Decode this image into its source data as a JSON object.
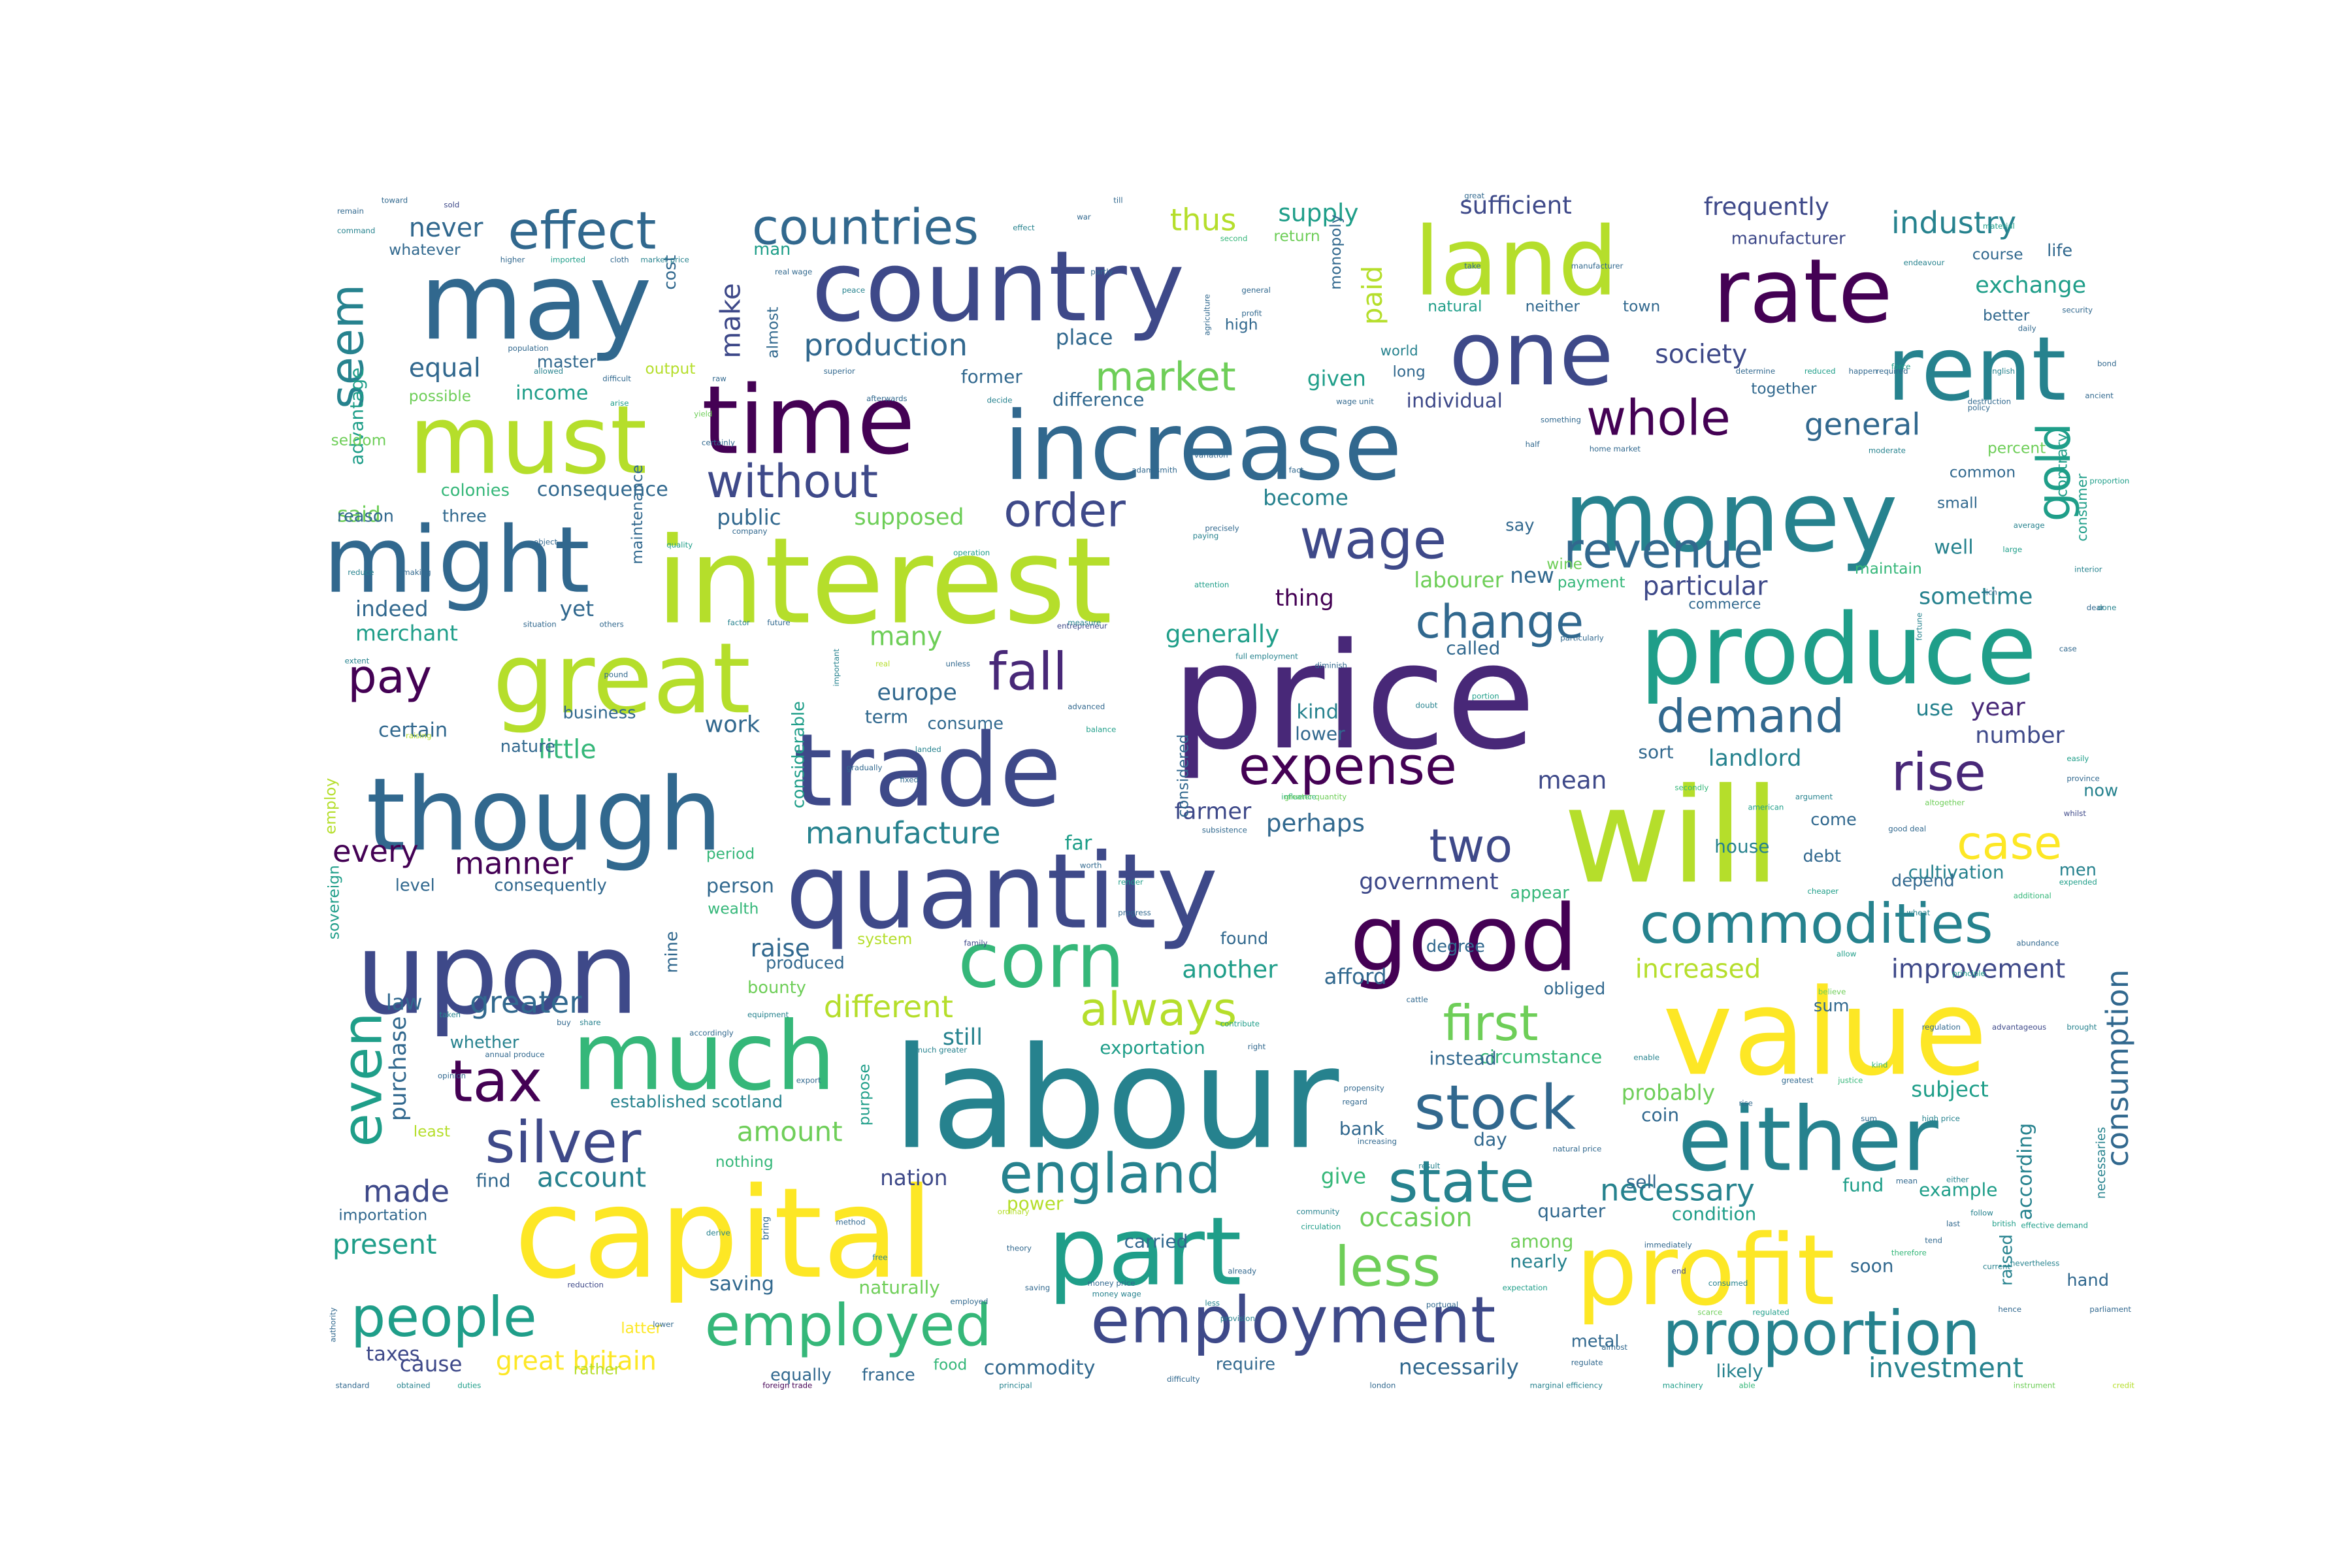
{
  "palette": [
    "#440154",
    "#482878",
    "#3e4989",
    "#31688e",
    "#26828e",
    "#1f9e89",
    "#35b779",
    "#6ece58",
    "#b5de2b",
    "#fde725"
  ],
  "words": [
    {
      "text": "price"
    },
    {
      "text": "labour"
    },
    {
      "text": "capital"
    },
    {
      "text": "value"
    },
    {
      "text": "country"
    },
    {
      "text": "interest"
    },
    {
      "text": "will"
    },
    {
      "text": "profit"
    },
    {
      "text": "quantity"
    },
    {
      "text": "trade"
    },
    {
      "text": "upon"
    },
    {
      "text": "though"
    },
    {
      "text": "land"
    },
    {
      "text": "may"
    },
    {
      "text": "money"
    },
    {
      "text": "produce"
    },
    {
      "text": "increase"
    },
    {
      "text": "part"
    },
    {
      "text": "time"
    },
    {
      "text": "must"
    },
    {
      "text": "great"
    },
    {
      "text": "might"
    },
    {
      "text": "rate"
    },
    {
      "text": "much"
    },
    {
      "text": "either"
    },
    {
      "text": "good"
    },
    {
      "text": "one"
    },
    {
      "text": "rent"
    },
    {
      "text": "corn"
    },
    {
      "text": "employment"
    },
    {
      "text": "proportion"
    },
    {
      "text": "stock"
    },
    {
      "text": "state"
    },
    {
      "text": "employed"
    },
    {
      "text": "commodities"
    },
    {
      "text": "people"
    },
    {
      "text": "silver"
    },
    {
      "text": "tax"
    },
    {
      "text": "even"
    },
    {
      "text": "england"
    },
    {
      "text": "expense"
    },
    {
      "text": "less"
    },
    {
      "text": "wage"
    },
    {
      "text": "whole"
    },
    {
      "text": "revenue"
    },
    {
      "text": "countries"
    },
    {
      "text": "effect"
    },
    {
      "text": "fall"
    },
    {
      "text": "demand"
    },
    {
      "text": "rise"
    },
    {
      "text": "case"
    },
    {
      "text": "first"
    },
    {
      "text": "always"
    },
    {
      "text": "market"
    },
    {
      "text": "without"
    },
    {
      "text": "order"
    },
    {
      "text": "change"
    },
    {
      "text": "pay"
    },
    {
      "text": "two"
    },
    {
      "text": "gold"
    },
    {
      "text": "seem"
    },
    {
      "text": "manufacture"
    },
    {
      "text": "production"
    },
    {
      "text": "industry"
    },
    {
      "text": "consumption"
    },
    {
      "text": "investment"
    },
    {
      "text": "necessary"
    },
    {
      "text": "greater"
    },
    {
      "text": "different"
    },
    {
      "text": "improvement"
    },
    {
      "text": "great britain"
    },
    {
      "text": "occasion"
    },
    {
      "text": "account"
    },
    {
      "text": "amount"
    },
    {
      "text": "made"
    },
    {
      "text": "present"
    },
    {
      "text": "increased"
    },
    {
      "text": "general"
    },
    {
      "text": "society"
    },
    {
      "text": "supply"
    },
    {
      "text": "thus"
    },
    {
      "text": "sufficient"
    },
    {
      "text": "frequently"
    },
    {
      "text": "exchange"
    },
    {
      "text": "paid"
    },
    {
      "text": "make"
    },
    {
      "text": "equal"
    },
    {
      "text": "never"
    },
    {
      "text": "income"
    },
    {
      "text": "manner"
    },
    {
      "text": "every"
    },
    {
      "text": "little"
    },
    {
      "text": "certain"
    },
    {
      "text": "indeed"
    },
    {
      "text": "merchant"
    },
    {
      "text": "public"
    },
    {
      "text": "supposed"
    },
    {
      "text": "consequence"
    },
    {
      "text": "generally"
    },
    {
      "text": "particular"
    },
    {
      "text": "labourer"
    },
    {
      "text": "sometime"
    },
    {
      "text": "landlord"
    },
    {
      "text": "year"
    },
    {
      "text": "number"
    },
    {
      "text": "mean"
    },
    {
      "text": "perhaps"
    },
    {
      "text": "farmer"
    },
    {
      "text": "government"
    },
    {
      "text": "another"
    },
    {
      "text": "raise"
    },
    {
      "text": "nation"
    },
    {
      "text": "give"
    },
    {
      "text": "commodity"
    },
    {
      "text": "necessarily"
    },
    {
      "text": "probably"
    },
    {
      "text": "subject"
    },
    {
      "text": "according"
    },
    {
      "text": "many"
    },
    {
      "text": "europe"
    },
    {
      "text": "work"
    },
    {
      "text": "person"
    },
    {
      "text": "law"
    },
    {
      "text": "purchase"
    },
    {
      "text": "still"
    },
    {
      "text": "afford"
    },
    {
      "text": "bank"
    },
    {
      "text": "sell"
    },
    {
      "text": "coin"
    },
    {
      "text": "taxes"
    },
    {
      "text": "cause"
    },
    {
      "text": "saving"
    },
    {
      "text": "naturally"
    },
    {
      "text": "given"
    },
    {
      "text": "become"
    },
    {
      "text": "thing"
    },
    {
      "text": "new"
    },
    {
      "text": "yet"
    },
    {
      "text": "said"
    },
    {
      "text": "individual"
    },
    {
      "text": "difference"
    },
    {
      "text": "place"
    },
    {
      "text": "former"
    },
    {
      "text": "called"
    },
    {
      "text": "kind"
    },
    {
      "text": "lower"
    },
    {
      "text": "well"
    },
    {
      "text": "use"
    },
    {
      "text": "sort"
    },
    {
      "text": "house"
    },
    {
      "text": "cultivation"
    },
    {
      "text": "circumstance"
    },
    {
      "text": "exportation"
    },
    {
      "text": "instead"
    },
    {
      "text": "day"
    },
    {
      "text": "quarter"
    },
    {
      "text": "condition"
    },
    {
      "text": "example"
    },
    {
      "text": "fund"
    },
    {
      "text": "nearly"
    },
    {
      "text": "among"
    },
    {
      "text": "carried"
    },
    {
      "text": "power"
    },
    {
      "text": "find"
    },
    {
      "text": "established scotland"
    },
    {
      "text": "whether"
    },
    {
      "text": "level"
    },
    {
      "text": "consequently"
    },
    {
      "text": "produced"
    },
    {
      "text": "bounty"
    },
    {
      "text": "equally"
    },
    {
      "text": "france"
    },
    {
      "text": "require"
    },
    {
      "text": "likely"
    },
    {
      "text": "metal"
    },
    {
      "text": "hand"
    },
    {
      "text": "soon"
    },
    {
      "text": "raised"
    },
    {
      "text": "now"
    },
    {
      "text": "men"
    },
    {
      "text": "debt"
    },
    {
      "text": "come"
    },
    {
      "text": "depend"
    },
    {
      "text": "sum"
    },
    {
      "text": "far"
    },
    {
      "text": "term"
    },
    {
      "text": "consume"
    },
    {
      "text": "nature"
    },
    {
      "text": "business"
    },
    {
      "text": "three"
    },
    {
      "text": "reason"
    },
    {
      "text": "colonies"
    },
    {
      "text": "master"
    },
    {
      "text": "advantage"
    },
    {
      "text": "possible"
    },
    {
      "text": "output"
    },
    {
      "text": "cost"
    },
    {
      "text": "man"
    },
    {
      "text": "almost"
    },
    {
      "text": "whatever"
    },
    {
      "text": "high"
    },
    {
      "text": "long"
    },
    {
      "text": "world"
    },
    {
      "text": "natural"
    },
    {
      "text": "neither"
    },
    {
      "text": "town"
    },
    {
      "text": "manufacturer"
    },
    {
      "text": "course"
    },
    {
      "text": "life"
    },
    {
      "text": "better"
    },
    {
      "text": "together"
    },
    {
      "text": "percent"
    },
    {
      "text": "common"
    },
    {
      "text": "small"
    },
    {
      "text": "contrary"
    },
    {
      "text": "consumer"
    },
    {
      "text": "commerce"
    },
    {
      "text": "maintain"
    },
    {
      "text": "wine"
    },
    {
      "text": "say"
    },
    {
      "text": "payment"
    },
    {
      "text": "return"
    },
    {
      "text": "monopoly"
    },
    {
      "text": "seldom"
    },
    {
      "text": "employ"
    },
    {
      "text": "sovereign"
    },
    {
      "text": "maintenance"
    },
    {
      "text": "considerable"
    },
    {
      "text": "mine"
    },
    {
      "text": "considered"
    },
    {
      "text": "entrepreneur"
    },
    {
      "text": "foreign trade"
    },
    {
      "text": "london"
    },
    {
      "text": "marginal efficiency"
    },
    {
      "text": "machinery"
    },
    {
      "text": "able"
    },
    {
      "text": "instrument"
    },
    {
      "text": "credit"
    },
    {
      "text": "parliament"
    },
    {
      "text": "current"
    },
    {
      "text": "british"
    },
    {
      "text": "last"
    },
    {
      "text": "scarce"
    },
    {
      "text": "regulated"
    },
    {
      "text": "end"
    },
    {
      "text": "least"
    },
    {
      "text": "food"
    },
    {
      "text": "principal"
    },
    {
      "text": "obliged"
    },
    {
      "text": "degree"
    },
    {
      "text": "appear"
    },
    {
      "text": "found"
    },
    {
      "text": "system"
    },
    {
      "text": "period"
    },
    {
      "text": "wealth"
    },
    {
      "text": "latter"
    },
    {
      "text": "rather"
    },
    {
      "text": "obtained"
    },
    {
      "text": "standard"
    },
    {
      "text": "duties"
    },
    {
      "text": "importation"
    },
    {
      "text": "immediately"
    },
    {
      "text": "reduction"
    },
    {
      "text": "bring"
    },
    {
      "text": "nothing"
    },
    {
      "text": "purpose"
    },
    {
      "text": "opinion"
    },
    {
      "text": "annual produce"
    },
    {
      "text": "necessaries"
    },
    {
      "text": "cheaper"
    },
    {
      "text": "justice"
    },
    {
      "text": "greatest"
    },
    {
      "text": "advantageous"
    },
    {
      "text": "regulation"
    },
    {
      "text": "brought"
    },
    {
      "text": "expended"
    },
    {
      "text": "additional"
    },
    {
      "text": "population"
    },
    {
      "text": "allowed"
    },
    {
      "text": "difficult"
    },
    {
      "text": "arise"
    },
    {
      "text": "yield"
    },
    {
      "text": "raw"
    },
    {
      "text": "peace"
    },
    {
      "text": "superior"
    },
    {
      "text": "afterwards"
    },
    {
      "text": "decide"
    },
    {
      "text": "remain"
    },
    {
      "text": "toward"
    },
    {
      "text": "sold"
    },
    {
      "text": "command"
    },
    {
      "text": "higher"
    },
    {
      "text": "imported"
    },
    {
      "text": "cloth"
    },
    {
      "text": "market price"
    },
    {
      "text": "real wage"
    },
    {
      "text": "effect"
    },
    {
      "text": "war"
    },
    {
      "text": "till"
    },
    {
      "text": "second"
    },
    {
      "text": "partly"
    },
    {
      "text": "agriculture"
    },
    {
      "text": "general"
    },
    {
      "text": "profit"
    },
    {
      "text": "great"
    },
    {
      "text": "take"
    },
    {
      "text": "manufacturer"
    },
    {
      "text": "endeavour"
    },
    {
      "text": "material"
    },
    {
      "text": "daily"
    },
    {
      "text": "security"
    },
    {
      "text": "english"
    },
    {
      "text": "bond"
    },
    {
      "text": "destruction"
    },
    {
      "text": "force"
    },
    {
      "text": "reduced"
    },
    {
      "text": "happen"
    },
    {
      "text": "required"
    },
    {
      "text": "determine"
    },
    {
      "text": "home market"
    },
    {
      "text": "something"
    },
    {
      "text": "half"
    },
    {
      "text": "wage unit"
    },
    {
      "text": "moderate"
    },
    {
      "text": "policy"
    },
    {
      "text": "rich"
    },
    {
      "text": "average"
    },
    {
      "text": "large"
    },
    {
      "text": "dear"
    },
    {
      "text": "fortune"
    },
    {
      "text": "proportion"
    },
    {
      "text": "done"
    },
    {
      "text": "case"
    },
    {
      "text": "easily"
    },
    {
      "text": "province"
    },
    {
      "text": "whilst"
    },
    {
      "text": "argument"
    },
    {
      "text": "good deal"
    },
    {
      "text": "altogether"
    },
    {
      "text": "secondly"
    },
    {
      "text": "greater quantity"
    },
    {
      "text": "full employment"
    },
    {
      "text": "unless"
    },
    {
      "text": "gradually"
    },
    {
      "text": "important"
    },
    {
      "text": "real"
    },
    {
      "text": "balance"
    },
    {
      "text": "advanced"
    },
    {
      "text": "influence"
    },
    {
      "text": "subsistence"
    },
    {
      "text": "progress"
    },
    {
      "text": "render"
    },
    {
      "text": "worth"
    },
    {
      "text": "money wage"
    },
    {
      "text": "adam smith"
    },
    {
      "text": "variation"
    },
    {
      "text": "fact"
    },
    {
      "text": "paying"
    },
    {
      "text": "attention"
    },
    {
      "text": "precisely"
    },
    {
      "text": "operation"
    },
    {
      "text": "others"
    },
    {
      "text": "situation"
    },
    {
      "text": "factor"
    },
    {
      "text": "future"
    },
    {
      "text": "measure"
    },
    {
      "text": "quality"
    },
    {
      "text": "object"
    },
    {
      "text": "making"
    },
    {
      "text": "reduce"
    },
    {
      "text": "raising"
    },
    {
      "text": "pound"
    },
    {
      "text": "extent"
    },
    {
      "text": "certainly"
    },
    {
      "text": "company"
    },
    {
      "text": "ancient"
    },
    {
      "text": "interior"
    },
    {
      "text": "american"
    },
    {
      "text": "diminish"
    },
    {
      "text": "doubt"
    },
    {
      "text": "portion"
    },
    {
      "text": "particularly"
    },
    {
      "text": "natural price"
    },
    {
      "text": "derive"
    },
    {
      "text": "effective demand"
    },
    {
      "text": "follow"
    },
    {
      "text": "cattle"
    },
    {
      "text": "contribute"
    },
    {
      "text": "propensity"
    },
    {
      "text": "taken"
    },
    {
      "text": "high price"
    },
    {
      "text": "principle"
    },
    {
      "text": "allow"
    },
    {
      "text": "abundance"
    },
    {
      "text": "community"
    },
    {
      "text": "already"
    },
    {
      "text": "theory"
    },
    {
      "text": "money price"
    },
    {
      "text": "less"
    },
    {
      "text": "provision"
    },
    {
      "text": "portugal"
    },
    {
      "text": "difficulty"
    },
    {
      "text": "almost"
    },
    {
      "text": "expectation"
    },
    {
      "text": "regulate"
    },
    {
      "text": "result"
    },
    {
      "text": "circulation"
    },
    {
      "text": "consumed"
    },
    {
      "text": "increasing"
    },
    {
      "text": "enable"
    },
    {
      "text": "regard"
    },
    {
      "text": "kind"
    },
    {
      "text": "believe"
    },
    {
      "text": "mean"
    },
    {
      "text": "either"
    },
    {
      "text": "tend"
    },
    {
      "text": "therefore"
    },
    {
      "text": "nevertheless"
    },
    {
      "text": "right"
    },
    {
      "text": "method"
    },
    {
      "text": "free"
    },
    {
      "text": "saving"
    },
    {
      "text": "ordinary"
    },
    {
      "text": "employed"
    },
    {
      "text": "much greater"
    },
    {
      "text": "buy"
    },
    {
      "text": "share"
    },
    {
      "text": "accordingly"
    },
    {
      "text": "equipment"
    },
    {
      "text": "lower"
    },
    {
      "text": "family"
    },
    {
      "text": "export"
    },
    {
      "text": "fixed"
    },
    {
      "text": "landed"
    },
    {
      "text": "authority"
    },
    {
      "text": "hence"
    },
    {
      "text": "sum"
    },
    {
      "text": "rise"
    },
    {
      "text": "wheat"
    }
  ]
}
